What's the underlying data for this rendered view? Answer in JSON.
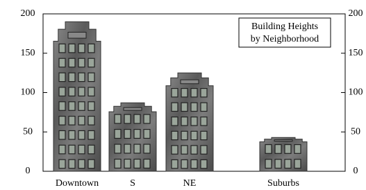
{
  "chart_data": {
    "type": "building-bar",
    "title_lines": [
      "Building Heights",
      "by Neighborhood"
    ],
    "categories": [
      "Downtown",
      "S",
      "NE",
      "Suburbs"
    ],
    "values": [
      190,
      87,
      125,
      43
    ],
    "color": "#6e6e6e",
    "ylim": [
      0,
      200
    ],
    "yticks": [
      0,
      50,
      100,
      150,
      200
    ],
    "right_axis": true
  }
}
